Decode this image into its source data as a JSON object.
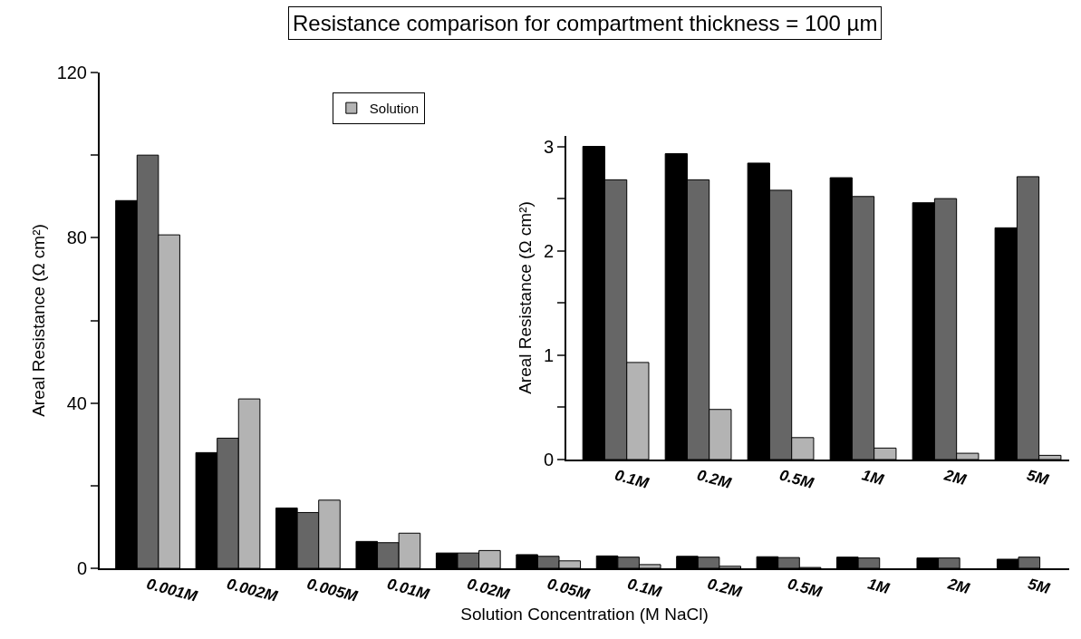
{
  "chart_data": [
    {
      "type": "bar",
      "title": "Resistance comparison for compartment thickness = 100 µm",
      "xlabel": "Solution Concentration (M NaCl)",
      "ylabel": "Areal Resistance (Ω cm²)",
      "categories": [
        "0.001M",
        "0.002M",
        "0.005M",
        "0.01M",
        "0.02M",
        "0.05M",
        "0.1M",
        "0.2M",
        "0.5M",
        "1M",
        "2M",
        "5M"
      ],
      "series": [
        {
          "color": "#000000",
          "values": [
            89,
            28,
            14.6,
            6.5,
            3.7,
            3.3,
            3.0,
            2.9,
            2.8,
            2.7,
            2.5,
            2.2
          ]
        },
        {
          "color": "#666666",
          "values": [
            100,
            31.5,
            13.5,
            6.2,
            3.7,
            2.9,
            2.7,
            2.7,
            2.6,
            2.5,
            2.5,
            2.7
          ]
        },
        {
          "name": "Solution",
          "color": "#b3b3b3",
          "values": [
            80.7,
            41,
            16.5,
            8.5,
            4.3,
            1.8,
            0.9,
            0.5,
            0.2,
            null,
            null,
            null
          ]
        }
      ],
      "ylim": [
        0,
        120
      ],
      "yticks": [
        0,
        {
          "value": 20,
          "label": null
        },
        40,
        {
          "value": 60,
          "label": null
        },
        80,
        {
          "value": 100,
          "label": null
        },
        120
      ],
      "grid": false,
      "legend": "top left"
    },
    {
      "type": "bar",
      "ylabel": "Areal Resistance (Ω cm²)",
      "categories": [
        "0.1M",
        "0.2M",
        "0.5M",
        "1M",
        "2M",
        "5M"
      ],
      "series": [
        {
          "color": "#000000",
          "values": [
            3.0,
            2.93,
            2.84,
            2.7,
            2.46,
            2.22
          ]
        },
        {
          "color": "#666666",
          "values": [
            2.68,
            2.68,
            2.58,
            2.52,
            2.5,
            2.71
          ]
        },
        {
          "color": "#b3b3b3",
          "values": [
            0.93,
            0.48,
            0.21,
            0.11,
            0.06,
            0.04
          ]
        }
      ],
      "ylim": [
        0,
        3.1
      ],
      "yticks": [
        0,
        {
          "value": 0.5,
          "label": null
        },
        1,
        {
          "value": 1.5,
          "label": null
        },
        2,
        {
          "value": 2.5,
          "label": null
        },
        3
      ],
      "grid": false
    }
  ]
}
